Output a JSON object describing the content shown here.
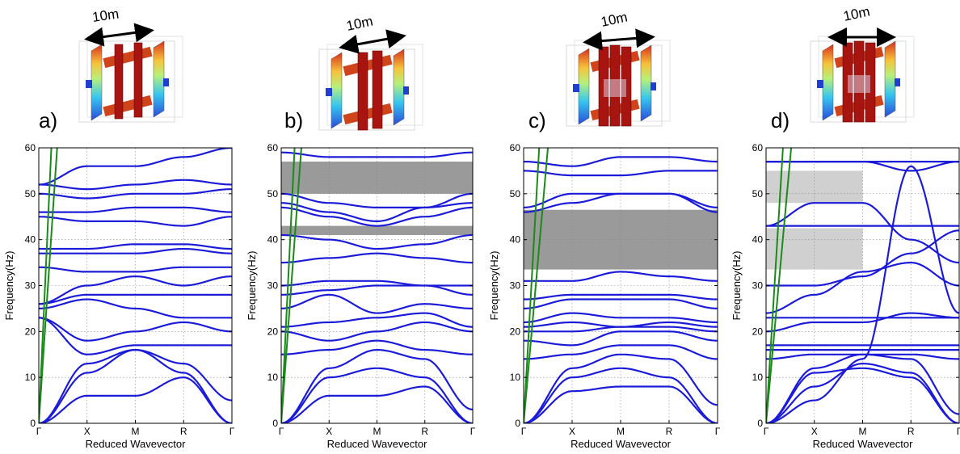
{
  "figure": {
    "dimension_label": "10m",
    "axes_labels": {
      "x": "Reduced Wavevector",
      "y": "Frequency(Hz)"
    }
  },
  "chart_data": [
    {
      "panel": "a)",
      "type": "line",
      "xlabel": "Reduced Wavevector",
      "ylabel": "Frequency(Hz)",
      "ylim": [
        0,
        60
      ],
      "ytick_labels": [
        "0",
        "10",
        "20",
        "30",
        "40",
        "50",
        "60"
      ],
      "categories": [
        "Γ",
        "X",
        "M",
        "R",
        "Γ"
      ],
      "grid": true,
      "band_gaps": [],
      "light_lines": [
        {
          "color": "#1a8a1a",
          "points": [
            [
              0,
              0
            ],
            [
              0.26,
              60
            ]
          ]
        },
        {
          "color": "#1a8a1a",
          "points": [
            [
              0,
              0
            ],
            [
              0.38,
              60
            ]
          ]
        }
      ],
      "series": [
        {
          "values": [
            0,
            6,
            6,
            10,
            0
          ]
        },
        {
          "values": [
            0,
            11,
            16,
            11,
            0
          ]
        },
        {
          "values": [
            0,
            13,
            16,
            13,
            5
          ]
        },
        {
          "values": [
            23,
            15,
            17,
            17,
            17
          ]
        },
        {
          "values": [
            23,
            18,
            20,
            22,
            20
          ]
        },
        {
          "values": [
            25,
            27,
            25,
            23,
            23
          ]
        },
        {
          "values": [
            26,
            28,
            28,
            28,
            28
          ]
        },
        {
          "values": [
            26,
            30,
            32,
            30,
            32
          ]
        },
        {
          "values": [
            34,
            33,
            33,
            34,
            34
          ]
        },
        {
          "values": [
            37,
            37,
            37,
            38,
            37
          ]
        },
        {
          "values": [
            38,
            38,
            39,
            39,
            38
          ]
        },
        {
          "values": [
            45,
            44,
            44,
            43,
            45
          ]
        },
        {
          "values": [
            46,
            46,
            47,
            47,
            46
          ]
        },
        {
          "values": [
            50,
            49,
            50,
            50,
            51
          ]
        },
        {
          "values": [
            52,
            51,
            52,
            53,
            52
          ]
        },
        {
          "values": [
            52,
            56,
            56,
            58,
            60
          ]
        }
      ]
    },
    {
      "panel": "b)",
      "type": "line",
      "xlabel": "Reduced Wavevector",
      "ylabel": "Frequency(Hz)",
      "ylim": [
        0,
        60
      ],
      "ytick_labels": [
        "0",
        "10",
        "20",
        "30",
        "40",
        "50",
        "60"
      ],
      "categories": [
        "Γ",
        "X",
        "M",
        "R",
        "Γ"
      ],
      "grid": true,
      "band_gaps": [
        {
          "from": 41,
          "to": 43,
          "color": "#9a9a9a",
          "x_to": 4
        },
        {
          "from": 50,
          "to": 57,
          "color": "#9a9a9a",
          "x_to": 4
        }
      ],
      "light_lines": [
        {
          "color": "#1a8a1a",
          "points": [
            [
              0,
              0
            ],
            [
              0.28,
              60
            ]
          ]
        },
        {
          "color": "#1a8a1a",
          "points": [
            [
              0,
              0
            ],
            [
              0.42,
              60
            ]
          ]
        }
      ],
      "series": [
        {
          "values": [
            0,
            6,
            6,
            8,
            0
          ]
        },
        {
          "values": [
            0,
            10,
            12,
            10,
            0
          ]
        },
        {
          "values": [
            0,
            12,
            16,
            14,
            3
          ]
        },
        {
          "values": [
            15,
            16,
            18,
            16,
            15
          ]
        },
        {
          "values": [
            20,
            18,
            20,
            22,
            20
          ]
        },
        {
          "values": [
            21,
            22,
            23,
            24,
            21
          ]
        },
        {
          "values": [
            25,
            28,
            24,
            26,
            25
          ]
        },
        {
          "values": [
            28,
            29,
            30,
            30,
            28
          ]
        },
        {
          "values": [
            30,
            31,
            31,
            30,
            30
          ]
        },
        {
          "values": [
            35,
            36,
            37,
            36,
            35
          ]
        },
        {
          "values": [
            41,
            40,
            38,
            39,
            41
          ]
        },
        {
          "values": [
            47,
            45,
            43,
            45,
            47
          ]
        },
        {
          "values": [
            48,
            46,
            44,
            47,
            48
          ]
        },
        {
          "values": [
            50,
            48,
            47,
            47,
            50
          ]
        },
        {
          "values": [
            59,
            58,
            58,
            58,
            59
          ]
        }
      ]
    },
    {
      "panel": "c)",
      "type": "line",
      "xlabel": "Reduced Wavevector",
      "ylabel": "Frequency(Hz)",
      "ylim": [
        0,
        60
      ],
      "ytick_labels": [
        "0",
        "10",
        "20",
        "30",
        "40",
        "50",
        "60"
      ],
      "categories": [
        "Γ",
        "X",
        "M",
        "R",
        "Γ"
      ],
      "grid": true,
      "band_gaps": [
        {
          "from": 33.5,
          "to": 46.5,
          "color": "#9a9a9a",
          "x_to": 4
        }
      ],
      "light_lines": [
        {
          "color": "#1a8a1a",
          "points": [
            [
              0,
              0
            ],
            [
              0.32,
              60
            ]
          ]
        },
        {
          "color": "#1a8a1a",
          "points": [
            [
              0,
              0
            ],
            [
              0.5,
              60
            ]
          ]
        }
      ],
      "series": [
        {
          "values": [
            0,
            7,
            8,
            8,
            0
          ]
        },
        {
          "values": [
            0,
            10,
            12,
            10,
            0
          ]
        },
        {
          "values": [
            0,
            12,
            15,
            14,
            4
          ]
        },
        {
          "values": [
            14,
            15,
            17,
            17,
            14
          ]
        },
        {
          "values": [
            18,
            17,
            20,
            20,
            18
          ]
        },
        {
          "values": [
            20,
            20,
            21,
            21,
            20
          ]
        },
        {
          "values": [
            21,
            22,
            21,
            22,
            21
          ]
        },
        {
          "values": [
            22,
            24,
            23,
            23,
            22
          ]
        },
        {
          "values": [
            25,
            27,
            27,
            27,
            25
          ]
        },
        {
          "values": [
            27,
            28,
            28,
            28,
            27
          ]
        },
        {
          "values": [
            31,
            31,
            33,
            32,
            31
          ]
        },
        {
          "values": [
            46,
            48,
            50,
            50,
            46
          ]
        },
        {
          "values": [
            47,
            50,
            50,
            50,
            47
          ]
        },
        {
          "values": [
            55,
            54,
            54,
            55,
            55
          ]
        },
        {
          "values": [
            57,
            56,
            58,
            58,
            57
          ]
        }
      ]
    },
    {
      "panel": "d)",
      "type": "line",
      "xlabel": "Reduced Wavevector",
      "ylabel": "Frequency(Hz)",
      "ylim": [
        0,
        60
      ],
      "ytick_labels": [
        "0",
        "10",
        "20",
        "30",
        "40",
        "50",
        "60"
      ],
      "categories": [
        "Γ",
        "X",
        "M",
        "R",
        "Γ"
      ],
      "grid": true,
      "band_gaps": [
        {
          "from": 33.5,
          "to": 42.5,
          "color": "#d0d0d0",
          "x_to": 2
        },
        {
          "from": 48,
          "to": 55,
          "color": "#d0d0d0",
          "x_to": 2
        }
      ],
      "light_lines": [
        {
          "color": "#1a8a1a",
          "points": [
            [
              0,
              0
            ],
            [
              0.35,
              60
            ]
          ]
        },
        {
          "color": "#1a8a1a",
          "points": [
            [
              0,
              0
            ],
            [
              0.52,
              60
            ]
          ]
        }
      ],
      "series": [
        {
          "values": [
            0,
            8,
            13,
            11,
            0
          ]
        },
        {
          "values": [
            0,
            11,
            12,
            10,
            0
          ]
        },
        {
          "values": [
            0,
            12,
            15,
            14,
            2
          ]
        },
        {
          "values": [
            14,
            15,
            15,
            15,
            14
          ]
        },
        {
          "values": [
            16,
            16,
            16,
            16,
            16
          ]
        },
        {
          "values": [
            17,
            17,
            17,
            17,
            17
          ]
        },
        {
          "values": [
            20,
            22,
            22,
            24,
            23
          ]
        },
        {
          "values": [
            23,
            23,
            23,
            23,
            23
          ]
        },
        {
          "values": [
            24,
            28,
            33,
            35,
            30
          ]
        },
        {
          "values": [
            30,
            30,
            32,
            37,
            42
          ]
        },
        {
          "values": [
            43,
            43,
            43,
            43,
            43
          ]
        },
        {
          "values": [
            43,
            48,
            48,
            40,
            35
          ]
        },
        {
          "values": [
            57,
            57,
            57,
            55,
            57
          ]
        },
        {
          "values": [
            57,
            57,
            57,
            57,
            57
          ]
        },
        {
          "values": [
            0,
            5,
            14,
            56,
            24
          ]
        }
      ]
    }
  ]
}
